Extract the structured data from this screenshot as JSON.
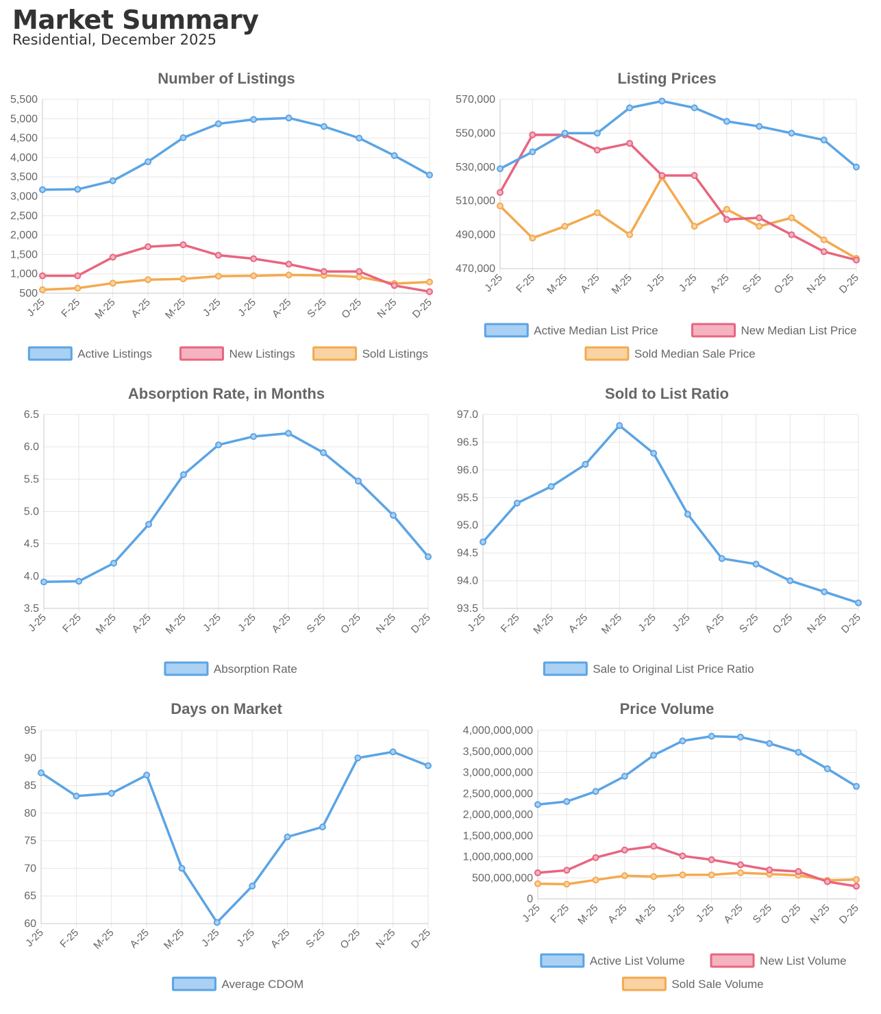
{
  "header": {
    "title": "Market Summary",
    "subtitle": "Residential, December 2025"
  },
  "colors": {
    "blue": "#5ba4e5",
    "red": "#e8657f",
    "orange": "#f4a94f",
    "blue_fill": "#aad0f3",
    "red_fill": "#f5b3c1",
    "orange_fill": "#f9d3a4"
  },
  "chart_data": [
    {
      "id": "listings",
      "type": "line",
      "title": "Number of Listings",
      "categories": [
        "J-25",
        "F-25",
        "M-25",
        "A-25",
        "M-25",
        "J-25",
        "J-25",
        "A-25",
        "S-25",
        "O-25",
        "N-25",
        "D-25"
      ],
      "ylim": [
        500,
        5500
      ],
      "yticks": [
        "5,500",
        "5,000",
        "4,500",
        "4,000",
        "3,500",
        "3,000",
        "2,500",
        "2,000",
        "1,500",
        "1,000",
        "500"
      ],
      "grid": true,
      "legend_position": "bottom",
      "series": [
        {
          "name": "Active Listings",
          "color": "blue",
          "values": [
            3170,
            3180,
            3400,
            3890,
            4510,
            4870,
            4980,
            5020,
            4800,
            4500,
            4050,
            3550
          ]
        },
        {
          "name": "New Listings",
          "color": "red",
          "values": [
            950,
            950,
            1430,
            1700,
            1750,
            1480,
            1390,
            1250,
            1060,
            1060,
            700,
            540
          ]
        },
        {
          "name": "Sold Listings",
          "color": "orange",
          "values": [
            590,
            630,
            760,
            850,
            870,
            940,
            950,
            970,
            960,
            920,
            750,
            790
          ]
        }
      ]
    },
    {
      "id": "prices",
      "type": "line",
      "title": "Listing Prices",
      "categories": [
        "J-25",
        "F-25",
        "M-25",
        "A-25",
        "M-25",
        "J-25",
        "J-25",
        "A-25",
        "S-25",
        "O-25",
        "N-25",
        "D-25"
      ],
      "ylim": [
        470000,
        570000
      ],
      "yticks": [
        "570,000",
        "550,000",
        "530,000",
        "510,000",
        "490,000",
        "470,000"
      ],
      "grid": true,
      "legend_position": "bottom",
      "series": [
        {
          "name": "Active Median List Price",
          "color": "blue",
          "values": [
            529000,
            539000,
            550000,
            550000,
            565000,
            569000,
            565000,
            557000,
            554000,
            550000,
            546000,
            530000
          ]
        },
        {
          "name": "New Median List Price",
          "color": "red",
          "values": [
            515000,
            549000,
            549000,
            540000,
            544000,
            525000,
            525000,
            499000,
            500000,
            490000,
            480000,
            475000
          ]
        },
        {
          "name": "Sold Median Sale Price",
          "color": "orange",
          "values": [
            507000,
            488000,
            495000,
            503000,
            490000,
            524000,
            495000,
            505000,
            495000,
            500000,
            487000,
            476000
          ]
        }
      ]
    },
    {
      "id": "absorption",
      "type": "line",
      "title": "Absorption Rate, in Months",
      "categories": [
        "J-25",
        "F-25",
        "M-25",
        "A-25",
        "M-25",
        "J-25",
        "J-25",
        "A-25",
        "S-25",
        "O-25",
        "N-25",
        "D-25"
      ],
      "ylim": [
        3.5,
        6.5
      ],
      "yticks": [
        "6.5",
        "6.0",
        "5.5",
        "5.0",
        "4.5",
        "4.0",
        "3.5"
      ],
      "grid": true,
      "legend_position": "bottom",
      "series": [
        {
          "name": "Absorption Rate",
          "color": "blue",
          "values": [
            3.91,
            3.92,
            4.2,
            4.8,
            5.57,
            6.03,
            6.16,
            6.21,
            5.91,
            5.47,
            4.94,
            4.3
          ]
        }
      ]
    },
    {
      "id": "ratio",
      "type": "line",
      "title": "Sold to List Ratio",
      "categories": [
        "J-25",
        "F-25",
        "M-25",
        "A-25",
        "M-25",
        "J-25",
        "J-25",
        "A-25",
        "S-25",
        "O-25",
        "N-25",
        "D-25"
      ],
      "ylim": [
        93.5,
        97.0
      ],
      "yticks": [
        "97.0",
        "96.5",
        "96.0",
        "95.5",
        "95.0",
        "94.5",
        "94.0",
        "93.5"
      ],
      "grid": true,
      "legend_position": "bottom",
      "series": [
        {
          "name": "Sale to Original List Price Ratio",
          "color": "blue",
          "values": [
            94.7,
            95.4,
            95.7,
            96.1,
            96.8,
            96.3,
            95.2,
            94.4,
            94.3,
            94.0,
            93.8,
            93.6
          ]
        }
      ]
    },
    {
      "id": "dom",
      "type": "line",
      "title": "Days on Market",
      "categories": [
        "J-25",
        "F-25",
        "M-25",
        "A-25",
        "M-25",
        "J-25",
        "J-25",
        "A-25",
        "S-25",
        "O-25",
        "N-25",
        "D-25"
      ],
      "ylim": [
        60,
        95
      ],
      "yticks": [
        "95",
        "90",
        "85",
        "80",
        "75",
        "70",
        "65",
        "60"
      ],
      "grid": true,
      "legend_position": "bottom",
      "series": [
        {
          "name": "Average CDOM",
          "color": "blue",
          "values": [
            87.3,
            83.1,
            83.6,
            86.9,
            70.0,
            60.2,
            66.8,
            75.7,
            77.5,
            90.0,
            91.1,
            88.6
          ]
        }
      ]
    },
    {
      "id": "volume",
      "type": "line",
      "title": "Price Volume",
      "categories": [
        "J-25",
        "F-25",
        "M-25",
        "A-25",
        "M-25",
        "J-25",
        "J-25",
        "A-25",
        "S-25",
        "O-25",
        "N-25",
        "D-25"
      ],
      "ylim": [
        0,
        4000000000
      ],
      "yticks": [
        "4,000,000,000",
        "3,500,000,000",
        "3,000,000,000",
        "2,500,000,000",
        "2,000,000,000",
        "1,500,000,000",
        "1,000,000,000",
        "500,000,000",
        "0"
      ],
      "grid": true,
      "legend_position": "bottom",
      "series": [
        {
          "name": "Active List Volume",
          "color": "blue",
          "values": [
            2240000000,
            2310000000,
            2550000000,
            2910000000,
            3410000000,
            3750000000,
            3860000000,
            3840000000,
            3690000000,
            3480000000,
            3090000000,
            2670000000
          ]
        },
        {
          "name": "New List Volume",
          "color": "red",
          "values": [
            620000000,
            680000000,
            980000000,
            1160000000,
            1250000000,
            1020000000,
            930000000,
            810000000,
            690000000,
            650000000,
            410000000,
            300000000
          ]
        },
        {
          "name": "Sold Sale Volume",
          "color": "orange",
          "values": [
            360000000,
            350000000,
            450000000,
            550000000,
            530000000,
            570000000,
            570000000,
            620000000,
            590000000,
            560000000,
            440000000,
            460000000
          ]
        }
      ]
    }
  ]
}
